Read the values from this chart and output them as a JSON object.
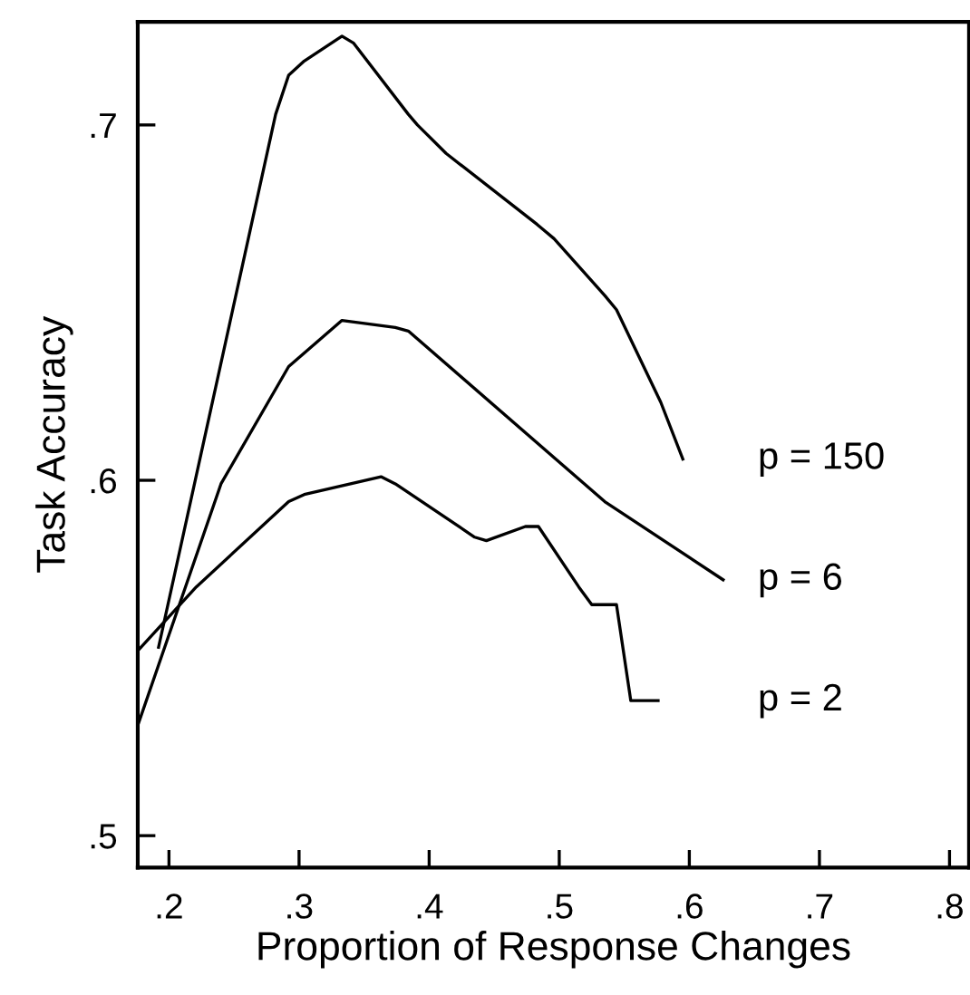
{
  "chart_data": {
    "type": "line",
    "xlabel": "Proportion of Response Changes",
    "ylabel": "Task Accuracy",
    "xlim": [
      0.176,
      0.815
    ],
    "ylim": [
      0.491,
      0.729
    ],
    "xticks": [
      {
        "value": 0.2,
        "label": ".2"
      },
      {
        "value": 0.3,
        "label": ".3"
      },
      {
        "value": 0.4,
        "label": ".4"
      },
      {
        "value": 0.5,
        "label": ".5"
      },
      {
        "value": 0.6,
        "label": ".6"
      },
      {
        "value": 0.7,
        "label": ".7"
      },
      {
        "value": 0.8,
        "label": ".8"
      }
    ],
    "yticks": [
      {
        "value": 0.5,
        "label": ".5"
      },
      {
        "value": 0.6,
        "label": ".6"
      },
      {
        "value": 0.7,
        "label": ".7"
      }
    ],
    "grid": false,
    "legend": false,
    "marker": "none",
    "line_style": "solid",
    "series": [
      {
        "name": "p = 150",
        "color": "#000000",
        "x": [
          0.192,
          0.282,
          0.292,
          0.304,
          0.333,
          0.342,
          0.384,
          0.391,
          0.413,
          0.483,
          0.496,
          0.535,
          0.544,
          0.578,
          0.595
        ],
        "values": [
          0.553,
          0.703,
          0.714,
          0.718,
          0.725,
          0.723,
          0.703,
          0.7,
          0.692,
          0.672,
          0.668,
          0.652,
          0.648,
          0.622,
          0.606
        ]
      },
      {
        "name": "p = 6",
        "color": "#000000",
        "x": [
          0.176,
          0.24,
          0.292,
          0.333,
          0.374,
          0.384,
          0.535,
          0.626
        ],
        "values": [
          0.531,
          0.599,
          0.632,
          0.645,
          0.643,
          0.642,
          0.594,
          0.572
        ]
      },
      {
        "name": "p = 2",
        "color": "#000000",
        "x": [
          0.176,
          0.221,
          0.292,
          0.304,
          0.363,
          0.374,
          0.435,
          0.444,
          0.474,
          0.484,
          0.515,
          0.525,
          0.544,
          0.555,
          0.576
        ],
        "values": [
          0.552,
          0.57,
          0.594,
          0.596,
          0.601,
          0.599,
          0.584,
          0.583,
          0.587,
          0.587,
          0.57,
          0.565,
          0.565,
          0.538,
          0.538
        ]
      }
    ]
  }
}
